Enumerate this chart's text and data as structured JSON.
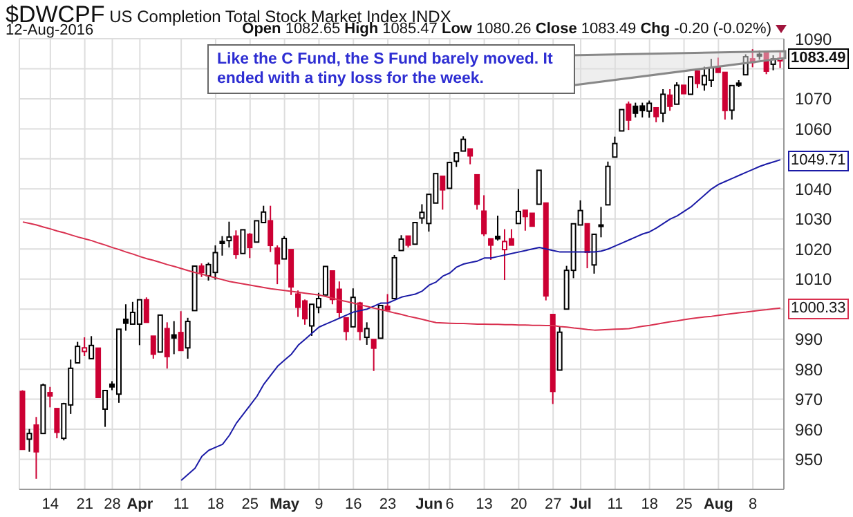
{
  "chart_data": {
    "type": "candlestick",
    "title": "$DWCPF US Completion Total Stock Market Index INDX",
    "subtitle": "12-Aug-2016",
    "annotations": [
      "Open 1082.65 High 1085.47 Low 1080.26 Close 1083.49 Chg -0.20 (-0.02%)",
      "Like the C Fund, the S Fund barely moved. It ended with a tiny loss for the week."
    ],
    "categories": [
      null,
      null,
      null,
      null,
      "14",
      null,
      null,
      null,
      null,
      "21",
      null,
      null,
      null,
      "28",
      null,
      null,
      null,
      "Apr",
      null,
      null,
      null,
      null,
      null,
      "11",
      null,
      null,
      null,
      null,
      "18",
      null,
      null,
      null,
      null,
      "25",
      null,
      null,
      null,
      null,
      "May",
      null,
      null,
      null,
      null,
      "9",
      null,
      null,
      null,
      null,
      "16",
      null,
      null,
      null,
      null,
      "23",
      null,
      null,
      null,
      null,
      null,
      "Jun",
      null,
      null,
      "6",
      null,
      null,
      null,
      null,
      "13",
      null,
      null,
      null,
      null,
      "20",
      null,
      null,
      null,
      null,
      "27",
      null,
      null,
      null,
      "Jul",
      null,
      null,
      null,
      null,
      "11",
      null,
      null,
      null,
      null,
      "18",
      null,
      null,
      null,
      null,
      "25",
      null,
      null,
      null,
      null,
      "Aug",
      null,
      null,
      null,
      null,
      "8",
      null,
      null,
      null,
      null
    ],
    "ylim": [
      940,
      1090
    ],
    "yticks": [
      950,
      960,
      970,
      980,
      990,
      {
        "value": 1000,
        "label": null
      },
      1010,
      1020,
      1030,
      1040,
      {
        "value": 1050,
        "label": null
      },
      1060,
      1070,
      {
        "value": 1080,
        "label": null
      },
      1090
    ],
    "grid": true,
    "series": [
      {
        "type": "line",
        "color": "#1a1aa6",
        "values": [
          null,
          null,
          null,
          null,
          null,
          null,
          null,
          null,
          null,
          null,
          null,
          null,
          null,
          null,
          null,
          null,
          null,
          null,
          null,
          null,
          null,
          null,
          null,
          943,
          945,
          947,
          951,
          953,
          954,
          955,
          958,
          962,
          965,
          968,
          971,
          975,
          978,
          981,
          983,
          985,
          988,
          990,
          992,
          994,
          995,
          996,
          997,
          998,
          999,
          999.5,
          1000,
          1001,
          1002,
          1002,
          1003,
          1004,
          1004.5,
          1005,
          1006,
          1008,
          1009,
          1011,
          1012,
          1014,
          1015,
          1015.5,
          1016,
          1017,
          1017,
          1017.5,
          1018,
          1018.5,
          1019,
          1019.5,
          1020,
          1020.5,
          1020,
          1019.5,
          1019,
          1019,
          1019,
          1019,
          1019,
          1019,
          1019.3,
          1020,
          1021,
          1022,
          1023,
          1024,
          1025,
          1025.7,
          1027,
          1028.5,
          1030,
          1031,
          1032.5,
          1034,
          1036,
          1038,
          1040,
          1041.5,
          1042.5,
          1043.5,
          1044.5,
          1045.5,
          1046.5,
          1047.5,
          1048.3,
          1049,
          1049.71
        ],
        "value_labels": [
          null,
          null,
          null,
          null,
          null,
          null,
          null,
          null,
          null,
          null,
          null,
          null,
          null,
          null,
          null,
          null,
          null,
          null,
          null,
          null,
          null,
          null,
          null,
          null,
          null,
          null,
          null,
          null,
          null,
          null,
          null,
          null,
          null,
          null,
          null,
          null,
          null,
          null,
          null,
          null,
          null,
          null,
          null,
          null,
          null,
          null,
          null,
          null,
          null,
          null,
          null,
          null,
          null,
          null,
          null,
          null,
          null,
          null,
          null,
          null,
          null,
          null,
          null,
          null,
          null,
          null,
          null,
          null,
          null,
          null,
          null,
          null,
          null,
          null,
          null,
          null,
          null,
          null,
          null,
          null,
          null,
          null,
          null,
          null,
          null,
          null,
          null,
          null,
          null,
          null,
          null,
          null,
          null,
          null,
          null,
          null,
          null,
          null,
          null,
          null,
          null,
          null,
          null,
          null,
          null,
          null,
          null,
          null,
          null,
          null,
          "1049.71"
        ]
      },
      {
        "type": "line",
        "color": "#d9304f",
        "values": [
          1029,
          1028.5,
          1028,
          1027.3,
          1026.7,
          1026,
          1025.4,
          1024.7,
          1024,
          1023.4,
          1022.8,
          1022,
          1021.3,
          1020.5,
          1019.8,
          1019,
          1018.3,
          1017.5,
          1016.8,
          1016.2,
          1015.5,
          1014.8,
          1014.2,
          1013.5,
          1012.8,
          1012.2,
          1011.6,
          1011,
          1010.4,
          1009.8,
          1009.2,
          1008.8,
          1008.4,
          1008,
          1007.6,
          1007.2,
          1006.8,
          1006.5,
          1006.2,
          1005.9,
          1005.6,
          1005.3,
          1005,
          1004.7,
          1004.2,
          1003.6,
          1003,
          1002.5,
          1002,
          1001.4,
          1000.9,
          1000.3,
          999.8,
          999.3,
          998.7,
          998.2,
          997.6,
          997.1,
          996.6,
          996,
          995.5,
          995.4,
          995.3,
          995.2,
          995.2,
          995.1,
          995,
          995,
          994.9,
          994.9,
          994.8,
          994.8,
          994.7,
          994.7,
          994.6,
          994.6,
          994.5,
          994.5,
          994.2,
          994,
          993.7,
          993.5,
          993.2,
          993,
          993.1,
          993.2,
          993.3,
          993.4,
          993.5,
          993.9,
          994.3,
          994.6,
          995,
          995.4,
          995.8,
          996.1,
          996.5,
          996.8,
          997.1,
          997.4,
          997.6,
          997.9,
          998.2,
          998.5,
          998.8,
          999,
          999.3,
          999.6,
          999.8,
          1000.1,
          1000.33
        ],
        "value_labels": [
          null,
          null,
          null,
          null,
          null,
          null,
          null,
          null,
          null,
          null,
          null,
          null,
          null,
          null,
          null,
          null,
          null,
          null,
          null,
          null,
          null,
          null,
          null,
          null,
          null,
          null,
          null,
          null,
          null,
          null,
          null,
          null,
          null,
          null,
          null,
          null,
          null,
          null,
          null,
          null,
          null,
          null,
          null,
          null,
          null,
          null,
          null,
          null,
          null,
          null,
          null,
          null,
          null,
          null,
          null,
          null,
          null,
          null,
          null,
          null,
          null,
          null,
          null,
          null,
          null,
          null,
          null,
          null,
          null,
          null,
          null,
          null,
          null,
          null,
          null,
          null,
          null,
          null,
          null,
          null,
          null,
          null,
          null,
          null,
          null,
          null,
          null,
          null,
          null,
          null,
          null,
          null,
          null,
          null,
          null,
          null,
          null,
          null,
          null,
          null,
          null,
          null,
          null,
          null,
          null,
          null,
          null,
          null,
          null,
          null,
          "1000.33"
        ]
      },
      {
        "type": "candlestick",
        "ohlc": [
          [
            972.6,
            973,
            953.3,
            953.3
          ],
          [
            956.7,
            960.1,
            952.5,
            958.6
          ],
          [
            961.4,
            964.1,
            943.5,
            952.5
          ],
          [
            958.6,
            975.2,
            958.6,
            974.7
          ],
          [
            972.2,
            974.1,
            967.3,
            971.1
          ],
          [
            966.9,
            966.9,
            957,
            959
          ],
          [
            957,
            968.8,
            956.3,
            968.5
          ],
          [
            968.1,
            983.2,
            965.1,
            980.3
          ],
          [
            982.1,
            989.1,
            982.1,
            987.6
          ],
          [
            985.9,
            990.6,
            984.4,
            987.1
          ],
          [
            983.5,
            991,
            983.5,
            987.9
          ],
          [
            987,
            987,
            970.6,
            970.6
          ],
          [
            966.7,
            972.9,
            960.8,
            972.9
          ],
          [
            975,
            976,
            973,
            974.1
          ],
          [
            971.7,
            993.3,
            968.8,
            993.3
          ],
          [
            996.6,
            1001.6,
            992.8,
            995.3
          ],
          [
            995,
            1002.4,
            995,
            998.9
          ],
          [
            995,
            1003.1,
            988,
            1003.1
          ],
          [
            1003.1,
            1003.9,
            995.6,
            995.6
          ],
          [
            991,
            991,
            983.5,
            985
          ],
          [
            985.7,
            998,
            985.7,
            998
          ],
          [
            993.5,
            995.6,
            980.2,
            984.2
          ],
          [
            991.4,
            996,
            985,
            990.4
          ],
          [
            992.2,
            999.3,
            986.2,
            986.2
          ],
          [
            987.1,
            997.1,
            983.5,
            995.9
          ],
          [
            999.5,
            1014.3,
            999.5,
            1014.3
          ],
          [
            1014.3,
            1015.2,
            1010.7,
            1012.2
          ],
          [
            1011.1,
            1015.5,
            1009.5,
            1014.8
          ],
          [
            1012.2,
            1021.2,
            1009.8,
            1018.8
          ],
          [
            1022.5,
            1024.3,
            1017.8,
            1021.9
          ],
          [
            1022.8,
            1029.1,
            1020.5,
            1024
          ],
          [
            1024.3,
            1026.2,
            1016.7,
            1018.2
          ],
          [
            1018.5,
            1026.4,
            1018.5,
            1026.4
          ],
          [
            1024.9,
            1025.3,
            1017,
            1020.5
          ],
          [
            1022.3,
            1029.4,
            1022.3,
            1029.4
          ],
          [
            1028.8,
            1034.4,
            1028.8,
            1032.3
          ],
          [
            1029.4,
            1034.4,
            1019,
            1021.2
          ],
          [
            1020.3,
            1021.2,
            1008.3,
            1015.1
          ],
          [
            1016.7,
            1024.3,
            1016.7,
            1023.5
          ],
          [
            1019.8,
            1019.8,
            1004.7,
            1007.4
          ],
          [
            1005,
            1006.2,
            997.4,
            1000.6
          ],
          [
            1002.7,
            1003.2,
            994.8,
            996.8
          ],
          [
            994.4,
            1001.6,
            991.1,
            1001.6
          ],
          [
            1000.6,
            1005.4,
            998.6,
            1003.5
          ],
          [
            1004.7,
            1014.2,
            1004.7,
            1014.2
          ],
          [
            1012.7,
            1012.7,
            1001.6,
            1003.2
          ],
          [
            1006.6,
            1009.2,
            997.1,
            998.9
          ],
          [
            997.1,
            997.1,
            989.6,
            992.6
          ],
          [
            994.1,
            1006.9,
            994.1,
            1003.9
          ],
          [
            1002,
            1002.4,
            989.6,
            992.6
          ],
          [
            990.6,
            995.6,
            988.1,
            993.5
          ],
          [
            989.9,
            989.9,
            979.4,
            987
          ],
          [
            990.3,
            1001.2,
            990.3,
            1001.2
          ],
          [
            1000.9,
            1005,
            999.7,
            999.7
          ],
          [
            1003.5,
            1018,
            1003.5,
            1017.1
          ],
          [
            1019.5,
            1024.6,
            1019.5,
            1023.3
          ],
          [
            1024.3,
            1024.3,
            1020.5,
            1021.3
          ],
          [
            1021.6,
            1028.8,
            1021.6,
            1028.8
          ],
          [
            1030.3,
            1034.9,
            1028.4,
            1032.2
          ],
          [
            1028.5,
            1038.2,
            1025.8,
            1038.2
          ],
          [
            1035.3,
            1045.1,
            1035.3,
            1045.1
          ],
          [
            1044.2,
            1044.2,
            1033.1,
            1039.7
          ],
          [
            1040.2,
            1048.8,
            1040.2,
            1048.8
          ],
          [
            1049.2,
            1052,
            1047.3,
            1052
          ],
          [
            1052.6,
            1057.5,
            1052.6,
            1056.5
          ],
          [
            1053.3,
            1053.3,
            1048.2,
            1051
          ],
          [
            1044.7,
            1044.7,
            1033.1,
            1034.9
          ],
          [
            1032.6,
            1037.9,
            1024.3,
            1025.1
          ],
          [
            1023.4,
            1023.4,
            1016.4,
            1021.3
          ],
          [
            1024.2,
            1031.1,
            1022.8,
            1023.4
          ],
          [
            1019.8,
            1026.6,
            1009.7,
            1022.5
          ],
          [
            1023.4,
            1026.6,
            1021.3,
            1021.3
          ],
          [
            1028.5,
            1040,
            1028.5,
            1032.5
          ],
          [
            1032.9,
            1032.9,
            1026.1,
            1030.8
          ],
          [
            1031.9,
            1031.9,
            1027.6,
            1027.6
          ],
          [
            1034.9,
            1046.2,
            1034.9,
            1046.2
          ],
          [
            1035.3,
            1035.3,
            1002.9,
            1004.4
          ],
          [
            998.2,
            998.2,
            968.4,
            972.6
          ],
          [
            979.7,
            994.1,
            979.7,
            992.3
          ],
          [
            1000,
            1014.4,
            1000,
            1012.9
          ],
          [
            1012.9,
            1028.4,
            1010.3,
            1028.4
          ],
          [
            1028,
            1036.2,
            1028,
            1032.8
          ],
          [
            1028.4,
            1028.4,
            1013.6,
            1018.9
          ],
          [
            1014.7,
            1024.9,
            1011.8,
            1024.9
          ],
          [
            1028,
            1034,
            1023.9,
            1027.5
          ],
          [
            1034.7,
            1049.1,
            1034.7,
            1047.5
          ],
          [
            1050.6,
            1057.4,
            1050.6,
            1055.1
          ],
          [
            1059.3,
            1066.4,
            1059.3,
            1066.4
          ],
          [
            1068.2,
            1069.1,
            1059.6,
            1062.9
          ],
          [
            1067.5,
            1068.7,
            1063.8,
            1065.2
          ],
          [
            1067.6,
            1068.7,
            1063.8,
            1066.1
          ],
          [
            1065.9,
            1069.4,
            1063.7,
            1068.5
          ],
          [
            1067,
            1067,
            1062.2,
            1064.1
          ],
          [
            1065.2,
            1073.2,
            1062.2,
            1071.5
          ],
          [
            1071.2,
            1073.2,
            1066,
            1067.5
          ],
          [
            1068.2,
            1075.5,
            1068.2,
            1074.5
          ],
          [
            1074.5,
            1074.5,
            1071.7,
            1071.7
          ],
          [
            1071.5,
            1077.3,
            1071.5,
            1077.3
          ],
          [
            1079.2,
            1079.2,
            1073.6,
            1075.1
          ],
          [
            1074.7,
            1080.7,
            1072.7,
            1077.7
          ],
          [
            1076.2,
            1083.3,
            1073.9,
            1080.3
          ],
          [
            1080.7,
            1083.7,
            1078.8,
            1078.8
          ],
          [
            1078.8,
            1078.8,
            1063.1,
            1066.1
          ],
          [
            1066.2,
            1074.4,
            1063.1,
            1074.4
          ],
          [
            1075.2,
            1076.2,
            1073.9,
            1074.5
          ],
          [
            1078,
            1084.8,
            1078,
            1084
          ],
          [
            1083.3,
            1086.5,
            1080.5,
            1082.1
          ],
          [
            1084.8,
            1086,
            1083,
            1084.2
          ],
          [
            1085.3,
            1085.3,
            1078.2,
            1079.2
          ],
          [
            1081.5,
            1084.5,
            1079.5,
            1083.3
          ],
          [
            1082.65,
            1085.47,
            1080.26,
            1083.49
          ]
        ],
        "value_labels": [
          null,
          null,
          null,
          null,
          null,
          null,
          null,
          null,
          null,
          null,
          null,
          null,
          null,
          null,
          null,
          null,
          null,
          null,
          null,
          null,
          null,
          null,
          null,
          null,
          null,
          null,
          null,
          null,
          null,
          null,
          null,
          null,
          null,
          null,
          null,
          null,
          null,
          null,
          null,
          null,
          null,
          null,
          null,
          null,
          null,
          null,
          null,
          null,
          null,
          null,
          null,
          null,
          null,
          null,
          null,
          null,
          null,
          null,
          null,
          null,
          null,
          null,
          null,
          null,
          null,
          null,
          null,
          null,
          null,
          null,
          null,
          null,
          null,
          null,
          null,
          null,
          null,
          null,
          null,
          null,
          null,
          null,
          null,
          null,
          null,
          null,
          null,
          null,
          null,
          null,
          null,
          null,
          null,
          null,
          null,
          null,
          null,
          null,
          null,
          null,
          null,
          null,
          null,
          null,
          null,
          null,
          null,
          null,
          null,
          null,
          "1083.49"
        ],
        "colors": [
          "#cc0033",
          "#000000",
          "#cc0033",
          "#000000",
          "#cc0033",
          "#cc0033",
          "#000000",
          "#000000",
          "#000000",
          "#cc0033",
          "#000000",
          "#cc0033",
          "#000000",
          "#000000",
          "#000000",
          "#000000",
          "#000000",
          "#000000",
          "#cc0033",
          "#cc0033",
          "#000000",
          "#cc0033",
          "#000000",
          "#cc0033",
          "#000000",
          "#000000",
          "#cc0033",
          "#000000",
          "#000000",
          "#000000",
          "#000000",
          "#cc0033",
          "#000000",
          "#cc0033",
          "#000000",
          "#000000",
          "#cc0033",
          "#cc0033",
          "#000000",
          "#cc0033",
          "#cc0033",
          "#cc0033",
          "#000000",
          "#000000",
          "#000000",
          "#cc0033",
          "#cc0033",
          "#cc0033",
          "#000000",
          "#cc0033",
          "#000000",
          "#cc0033",
          "#000000",
          "#cc0033",
          "#000000",
          "#000000",
          "#cc0033",
          "#000000",
          "#000000",
          "#000000",
          "#000000",
          "#cc0033",
          "#000000",
          "#000000",
          "#000000",
          "#cc0033",
          "#cc0033",
          "#cc0033",
          "#cc0033",
          "#000000",
          "#cc0033",
          "#cc0033",
          "#000000",
          "#cc0033",
          "#cc0033",
          "#000000",
          "#cc0033",
          "#cc0033",
          "#000000",
          "#000000",
          "#000000",
          "#000000",
          "#cc0033",
          "#000000",
          "#000000",
          "#000000",
          "#000000",
          "#000000",
          "#cc0033",
          "#000000",
          "#000000",
          "#000000",
          "#cc0033",
          "#000000",
          "#cc0033",
          "#000000",
          "#cc0033",
          "#000000",
          "#cc0033",
          "#000000",
          "#000000",
          "#cc0033",
          "#cc0033",
          "#000000",
          "#000000",
          "#000000",
          "#cc0033",
          "#000000",
          "#cc0033",
          "#000000",
          "#cc0033"
        ]
      }
    ]
  }
}
